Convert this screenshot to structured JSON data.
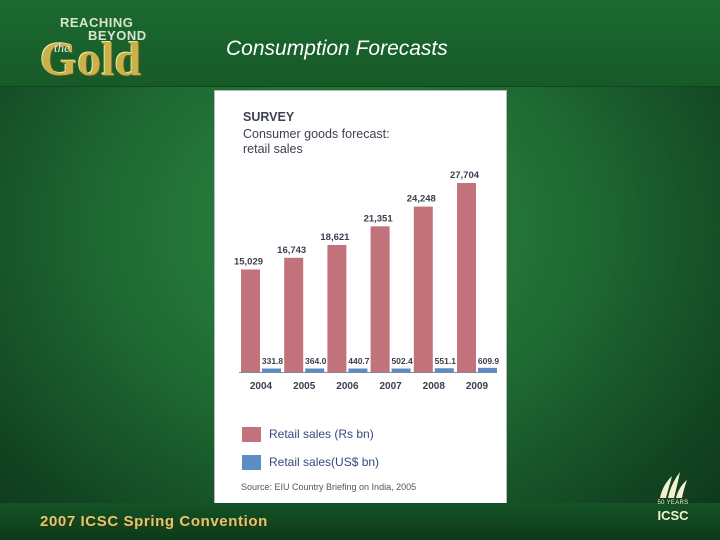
{
  "header": {
    "logo": {
      "line1": "REACHING",
      "line2": "BEYOND",
      "the": "the",
      "gold": "Gold"
    },
    "title": "Consumption Forecasts"
  },
  "footer": {
    "convention": "2007 ICSC Spring Convention",
    "icsc_years": "50 YEARS",
    "icsc_name": "ICSC"
  },
  "chart_data": {
    "type": "bar",
    "survey_label": "SURVEY",
    "title": "Consumer goods forecast: retail sales",
    "categories": [
      "2004",
      "2005",
      "2006",
      "2007",
      "2008",
      "2009"
    ],
    "series": [
      {
        "name": "Retail sales (Rs bn)",
        "color": "#c2727a",
        "values": [
          15029,
          16743,
          18621,
          21351,
          24248,
          27704
        ],
        "labels": [
          "15,029",
          "16,743",
          "18,621",
          "21,351",
          "24,248",
          "27,704"
        ]
      },
      {
        "name": "Retail sales(US$ bn)",
        "color": "#5c8cc4",
        "values": [
          331.8,
          364.0,
          440.7,
          502.4,
          551.1,
          609.9
        ],
        "labels": [
          "331.8",
          "364.0",
          "440.7",
          "502.4",
          "551.1",
          "609.9"
        ]
      }
    ],
    "ylim": [
      0,
      28000
    ],
    "grid": false,
    "legend_position": "bottom-left",
    "source": "Source: EIU Country Briefing on India, 2005"
  }
}
